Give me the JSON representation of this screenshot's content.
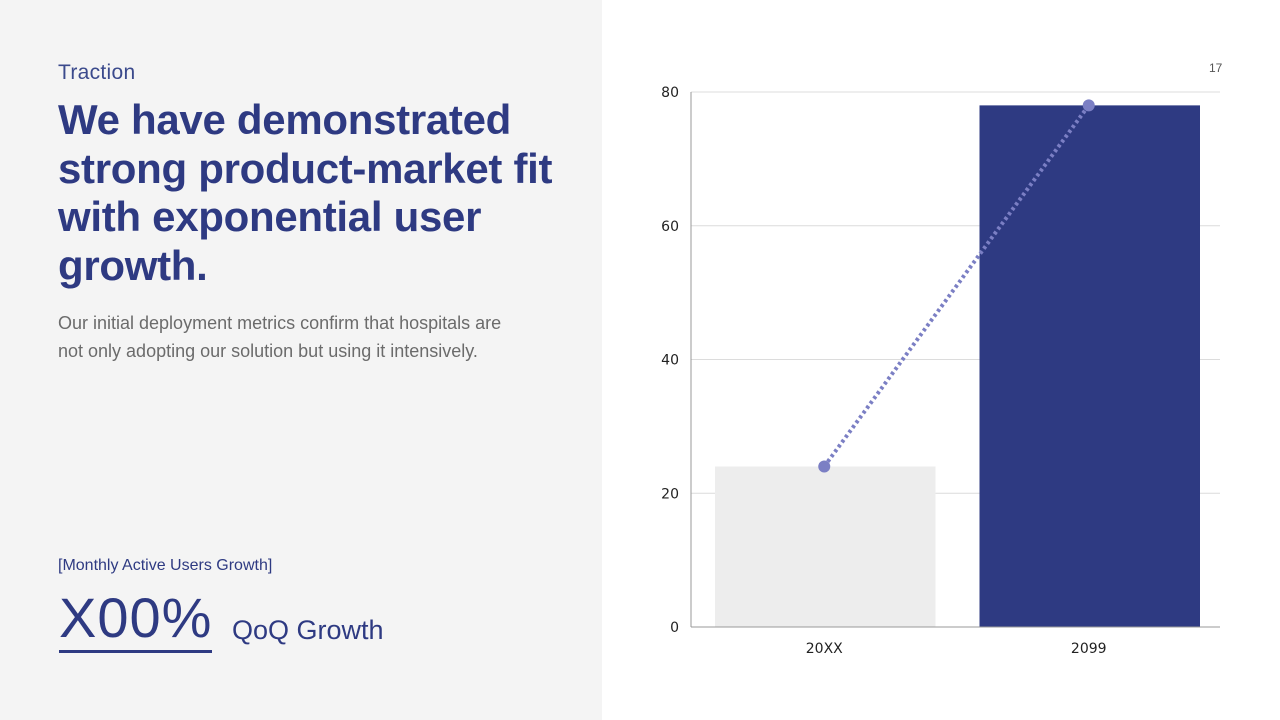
{
  "slide": {
    "section": "Traction",
    "headline": "We have demonstrated strong product-market fit with exponential user growth.",
    "body": "Our initial deployment metrics confirm that hospitals are not only adopting our solution but using it intensively.",
    "metric_label": "[Monthly Active Users Growth]",
    "metric_value": "X00%",
    "metric_caption": "QoQ Growth",
    "page_number": "17"
  },
  "colors": {
    "primary": "#2e3a82",
    "bar_light": "#ededed",
    "line": "#7b7fc4",
    "grid": "#dcdcdc",
    "left_bg": "#f4f4f4"
  },
  "chart_data": {
    "type": "bar",
    "categories": [
      "20XX",
      "2099"
    ],
    "values": [
      24,
      78
    ],
    "overlay_line": {
      "style": "dotted",
      "markers": true,
      "values": [
        24,
        78
      ]
    },
    "ylim": [
      0,
      80
    ],
    "yticks": [
      0,
      20,
      40,
      60,
      80
    ],
    "grid": true,
    "title": "",
    "xlabel": "",
    "ylabel": ""
  }
}
